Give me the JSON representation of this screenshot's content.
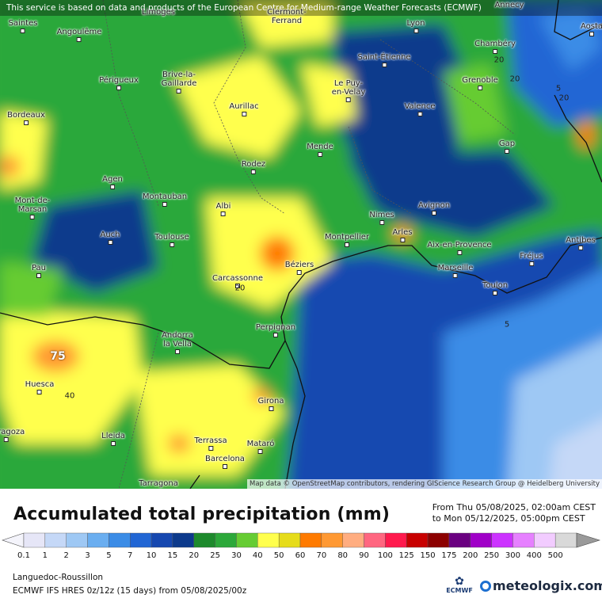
{
  "notice": "This service is based on data and products of the European Centre for Medium-range Weather Forecasts (ECMWF)",
  "attribution": "Map data © OpenStreetMap contributors, rendering GIScience Research Group @ Heidelberg University",
  "legend": {
    "title": "Accumulated total precipitation (mm)",
    "from": "From Thu 05/08/2025, 02:00am CEST",
    "to": "to Mon 05/12/2025, 05:00pm CEST",
    "steps": [
      {
        "label": "0.1",
        "color": "#e6e6f7"
      },
      {
        "label": "1",
        "color": "#c5d8f7"
      },
      {
        "label": "2",
        "color": "#9ec8f4"
      },
      {
        "label": "3",
        "color": "#6aaef0"
      },
      {
        "label": "5",
        "color": "#3b8ce6"
      },
      {
        "label": "7",
        "color": "#2166d4"
      },
      {
        "label": "10",
        "color": "#1648b0"
      },
      {
        "label": "15",
        "color": "#0d3a8c"
      },
      {
        "label": "20",
        "color": "#1d8a2c"
      },
      {
        "label": "25",
        "color": "#2ca83a"
      },
      {
        "label": "30",
        "color": "#66cc33"
      },
      {
        "label": "40",
        "color": "#ffff4d"
      },
      {
        "label": "50",
        "color": "#e6dc1a"
      },
      {
        "label": "60",
        "color": "#ff7b00"
      },
      {
        "label": "70",
        "color": "#ff9933"
      },
      {
        "label": "80",
        "color": "#ffad80"
      },
      {
        "label": "90",
        "color": "#ff6680"
      },
      {
        "label": "100",
        "color": "#ff1a4d"
      },
      {
        "label": "125",
        "color": "#c80000"
      },
      {
        "label": "150",
        "color": "#8c0000"
      },
      {
        "label": "175",
        "color": "#6a0080"
      },
      {
        "label": "200",
        "color": "#a000c8"
      },
      {
        "label": "250",
        "color": "#cc33ff"
      },
      {
        "label": "300",
        "color": "#e680ff"
      },
      {
        "label": "400",
        "color": "#f2ccff"
      },
      {
        "label": "500",
        "color": "#d9d9d9"
      }
    ]
  },
  "region": "Languedoc-Roussillon",
  "model": "ECMWF IFS HRES 0z/12z (15 days) from 05/08/2025/00z",
  "logos": {
    "ecmwf": "ECMWF",
    "meteologix": "meteologix.com"
  },
  "cities": [
    {
      "name": "Limoges"
    },
    {
      "name": "Clermont-\nFerrand"
    },
    {
      "name": "Annecy"
    },
    {
      "name": "Saintes"
    },
    {
      "name": "Angoulême"
    },
    {
      "name": "Lyon"
    },
    {
      "name": "Aosta"
    },
    {
      "name": "Chambéry"
    },
    {
      "name": "Saint-Étienne"
    },
    {
      "name": "Périgueux"
    },
    {
      "name": "Brive-la-\nGaillarde"
    },
    {
      "name": "Grenoble"
    },
    {
      "name": "Le Puy-\nen-Velay"
    },
    {
      "name": "Bordeaux"
    },
    {
      "name": "Aurillac"
    },
    {
      "name": "Valence"
    },
    {
      "name": "Gap"
    },
    {
      "name": "Mende"
    },
    {
      "name": "Rodez"
    },
    {
      "name": "Agen"
    },
    {
      "name": "Montauban"
    },
    {
      "name": "Mont-de-\nMarsan"
    },
    {
      "name": "Albi"
    },
    {
      "name": "Nimes"
    },
    {
      "name": "Avignon"
    },
    {
      "name": "Auch"
    },
    {
      "name": "Toulouse"
    },
    {
      "name": "Montpellier"
    },
    {
      "name": "Arles"
    },
    {
      "name": "Antibes"
    },
    {
      "name": "Aix-en-Provence"
    },
    {
      "name": "Fréjus"
    },
    {
      "name": "Pau"
    },
    {
      "name": "Béziers"
    },
    {
      "name": "Marseille"
    },
    {
      "name": "Carcassonne"
    },
    {
      "name": "Toulon"
    },
    {
      "name": "Perpignan"
    },
    {
      "name": "Andorra\nla Vella"
    },
    {
      "name": "Huesca"
    },
    {
      "name": "Girona"
    },
    {
      "name": "Lleida"
    },
    {
      "name": "Terrassa"
    },
    {
      "name": "Mataró"
    },
    {
      "name": "Barcelona"
    },
    {
      "name": "Tarragona"
    },
    {
      "name": "Saragoza"
    }
  ],
  "contour_labels": [
    "20",
    "20",
    "20",
    "5",
    "5",
    "20",
    "40",
    "75"
  ]
}
